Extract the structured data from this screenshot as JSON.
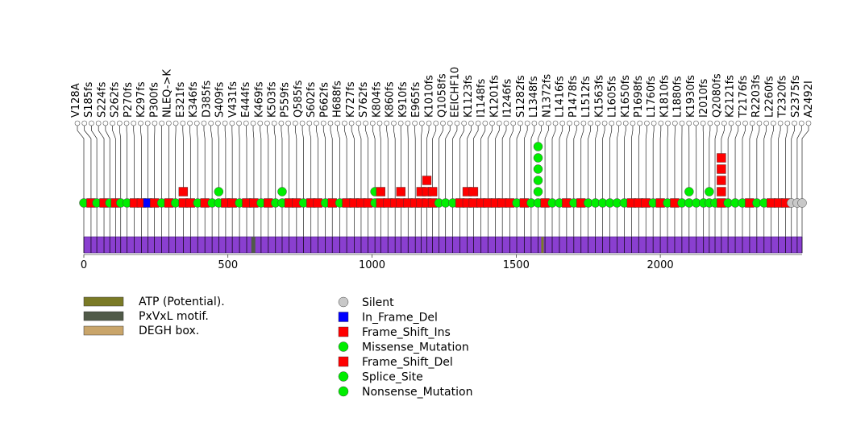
{
  "chart_data": {
    "type": "lollipop",
    "xlim": [
      0,
      2492
    ],
    "axis": {
      "ticks": [
        0,
        500,
        1000,
        1500,
        2000
      ]
    },
    "colors": {
      "protein_bar": "#8a3fd0",
      "frame_shift": "#ff0000",
      "missense": "#00ee00",
      "silent": "#c8c8c8",
      "in_frame_del": "#0000ff"
    },
    "domains": [
      {
        "name": "ATP (Potential).",
        "color": "#7a7a26",
        "start": 1587,
        "end": 1595
      },
      {
        "name": "PxVxL motif.",
        "color": "#505a48",
        "start": 581,
        "end": 595
      },
      {
        "name": "DEGH box.",
        "color": "#c9a56a",
        "start": 0,
        "end": 0
      }
    ],
    "legend": {
      "domains": [
        "ATP (Potential).",
        "PxVxL motif.",
        "DEGH box."
      ],
      "mutations": [
        {
          "label": "Silent",
          "shape": "circle",
          "color": "#c8c8c8"
        },
        {
          "label": "In_Frame_Del",
          "shape": "square",
          "color": "#0000ff"
        },
        {
          "label": "Frame_Shift_Ins",
          "shape": "square",
          "color": "#ff0000"
        },
        {
          "label": "Missense_Mutation",
          "shape": "circle",
          "color": "#00ee00"
        },
        {
          "label": "Frame_Shift_Del",
          "shape": "square",
          "color": "#ff0000"
        },
        {
          "label": "Splice_Site",
          "shape": "circle",
          "color": "#00ee00"
        },
        {
          "label": "Nonsense_Mutation",
          "shape": "circle",
          "color": "#00ee00"
        }
      ]
    },
    "mutation_labels": [
      "V128A",
      "S185fs",
      "S224fs",
      "S262fs",
      "P270fs",
      "K297fs",
      "P300fs",
      "NLEQ->K",
      "E321fs",
      "K346fs",
      "D385fs",
      "S409fs",
      "V431fs",
      "E444fs",
      "K469fs",
      "K503fs",
      "P559fs",
      "Q585fs",
      "S602fs",
      "P662fs",
      "H688fs",
      "K727fs",
      "S762fs",
      "K804fs",
      "K860fs",
      "K910fs",
      "E965fs",
      "K1010fs",
      "Q1058fs",
      "EEICHF10",
      "K1123fs",
      "I1148fs",
      "K1201fs",
      "I1246fs",
      "S1282fs",
      "L1348fs",
      "N1372fs",
      "L1416fs",
      "P1478fs",
      "L1512fs",
      "K1563fs",
      "L1605fs",
      "K1650fs",
      "P1698fs",
      "L1760fs",
      "K1810fs",
      "L1880fs",
      "K1930fs",
      "I2010fs",
      "Q2080fs",
      "K2121fs",
      "T2176fs",
      "R2203fs",
      "L2260fs",
      "T2320fs",
      "S2375fs",
      "A2492I"
    ],
    "mutations": [
      {
        "pos": 0,
        "type": "missense",
        "count": 1
      },
      {
        "pos": 25,
        "type": "frameshift",
        "count": 1
      },
      {
        "pos": 45,
        "type": "missense",
        "count": 1
      },
      {
        "pos": 70,
        "type": "frameshift",
        "count": 1
      },
      {
        "pos": 90,
        "type": "missense",
        "count": 1
      },
      {
        "pos": 110,
        "type": "frameshift",
        "count": 1
      },
      {
        "pos": 128,
        "type": "missense",
        "count": 1
      },
      {
        "pos": 150,
        "type": "missense",
        "count": 1
      },
      {
        "pos": 175,
        "type": "frameshift",
        "count": 1
      },
      {
        "pos": 200,
        "type": "frameshift",
        "count": 1
      },
      {
        "pos": 222,
        "type": "in_frame_del",
        "count": 1
      },
      {
        "pos": 245,
        "type": "frameshift",
        "count": 1
      },
      {
        "pos": 270,
        "type": "missense",
        "count": 1
      },
      {
        "pos": 295,
        "type": "frameshift",
        "count": 1
      },
      {
        "pos": 318,
        "type": "missense",
        "count": 1
      },
      {
        "pos": 345,
        "type": "frameshift",
        "count": 2
      },
      {
        "pos": 370,
        "type": "frameshift",
        "count": 1
      },
      {
        "pos": 395,
        "type": "missense",
        "count": 1
      },
      {
        "pos": 420,
        "type": "frameshift",
        "count": 1
      },
      {
        "pos": 445,
        "type": "missense",
        "count": 1
      },
      {
        "pos": 468,
        "type": "missense",
        "count": 2
      },
      {
        "pos": 492,
        "type": "frameshift",
        "count": 1
      },
      {
        "pos": 515,
        "type": "frameshift",
        "count": 1
      },
      {
        "pos": 540,
        "type": "missense",
        "count": 1
      },
      {
        "pos": 565,
        "type": "frameshift",
        "count": 1
      },
      {
        "pos": 590,
        "type": "frameshift",
        "count": 1
      },
      {
        "pos": 615,
        "type": "missense",
        "count": 1
      },
      {
        "pos": 640,
        "type": "frameshift",
        "count": 1
      },
      {
        "pos": 665,
        "type": "missense",
        "count": 1
      },
      {
        "pos": 688,
        "type": "missense",
        "count": 2
      },
      {
        "pos": 712,
        "type": "frameshift",
        "count": 1
      },
      {
        "pos": 738,
        "type": "frameshift",
        "count": 1
      },
      {
        "pos": 762,
        "type": "missense",
        "count": 1
      },
      {
        "pos": 788,
        "type": "frameshift",
        "count": 1
      },
      {
        "pos": 812,
        "type": "frameshift",
        "count": 1
      },
      {
        "pos": 838,
        "type": "missense",
        "count": 1
      },
      {
        "pos": 862,
        "type": "frameshift",
        "count": 1
      },
      {
        "pos": 888,
        "type": "missense",
        "count": 1
      },
      {
        "pos": 912,
        "type": "frameshift",
        "count": 1
      },
      {
        "pos": 938,
        "type": "frameshift",
        "count": 1
      },
      {
        "pos": 962,
        "type": "frameshift",
        "count": 1
      },
      {
        "pos": 986,
        "type": "frameshift",
        "count": 1
      },
      {
        "pos": 1010,
        "type": "missense",
        "count": 2
      },
      {
        "pos": 1030,
        "type": "frameshift",
        "count": 2
      },
      {
        "pos": 1055,
        "type": "frameshift",
        "count": 1
      },
      {
        "pos": 1080,
        "type": "frameshift",
        "count": 1
      },
      {
        "pos": 1100,
        "type": "frameshift",
        "count": 2
      },
      {
        "pos": 1125,
        "type": "frameshift",
        "count": 1
      },
      {
        "pos": 1150,
        "type": "frameshift",
        "count": 1
      },
      {
        "pos": 1170,
        "type": "frameshift",
        "count": 2
      },
      {
        "pos": 1190,
        "type": "frameshift",
        "count": 3
      },
      {
        "pos": 1210,
        "type": "frameshift",
        "count": 2
      },
      {
        "pos": 1232,
        "type": "missense",
        "count": 1
      },
      {
        "pos": 1255,
        "type": "missense",
        "count": 1
      },
      {
        "pos": 1280,
        "type": "missense",
        "count": 1
      },
      {
        "pos": 1305,
        "type": "frameshift",
        "count": 1
      },
      {
        "pos": 1330,
        "type": "frameshift",
        "count": 2
      },
      {
        "pos": 1352,
        "type": "frameshift",
        "count": 2
      },
      {
        "pos": 1378,
        "type": "frameshift",
        "count": 1
      },
      {
        "pos": 1402,
        "type": "frameshift",
        "count": 1
      },
      {
        "pos": 1428,
        "type": "frameshift",
        "count": 1
      },
      {
        "pos": 1452,
        "type": "frameshift",
        "count": 1
      },
      {
        "pos": 1478,
        "type": "frameshift",
        "count": 1
      },
      {
        "pos": 1502,
        "type": "missense",
        "count": 1
      },
      {
        "pos": 1528,
        "type": "frameshift",
        "count": 1
      },
      {
        "pos": 1552,
        "type": "missense",
        "count": 1
      },
      {
        "pos": 1576,
        "type": "missense",
        "count": 6
      },
      {
        "pos": 1600,
        "type": "frameshift",
        "count": 1
      },
      {
        "pos": 1625,
        "type": "missense",
        "count": 1
      },
      {
        "pos": 1650,
        "type": "missense",
        "count": 1
      },
      {
        "pos": 1675,
        "type": "frameshift",
        "count": 1
      },
      {
        "pos": 1700,
        "type": "missense",
        "count": 1
      },
      {
        "pos": 1725,
        "type": "frameshift",
        "count": 1
      },
      {
        "pos": 1750,
        "type": "missense",
        "count": 1
      },
      {
        "pos": 1775,
        "type": "missense",
        "count": 1
      },
      {
        "pos": 1800,
        "type": "missense",
        "count": 1
      },
      {
        "pos": 1825,
        "type": "missense",
        "count": 1
      },
      {
        "pos": 1850,
        "type": "missense",
        "count": 1
      },
      {
        "pos": 1875,
        "type": "missense",
        "count": 1
      },
      {
        "pos": 1900,
        "type": "frameshift",
        "count": 1
      },
      {
        "pos": 1925,
        "type": "frameshift",
        "count": 1
      },
      {
        "pos": 1950,
        "type": "frameshift",
        "count": 1
      },
      {
        "pos": 1975,
        "type": "missense",
        "count": 1
      },
      {
        "pos": 2000,
        "type": "frameshift",
        "count": 1
      },
      {
        "pos": 2025,
        "type": "missense",
        "count": 1
      },
      {
        "pos": 2050,
        "type": "frameshift",
        "count": 1
      },
      {
        "pos": 2075,
        "type": "missense",
        "count": 1
      },
      {
        "pos": 2100,
        "type": "missense",
        "count": 2
      },
      {
        "pos": 2125,
        "type": "missense",
        "count": 1
      },
      {
        "pos": 2150,
        "type": "missense",
        "count": 1
      },
      {
        "pos": 2170,
        "type": "missense",
        "count": 2
      },
      {
        "pos": 2190,
        "type": "missense",
        "count": 1
      },
      {
        "pos": 2212,
        "type": "frameshift",
        "count": 5
      },
      {
        "pos": 2235,
        "type": "missense",
        "count": 1
      },
      {
        "pos": 2260,
        "type": "missense",
        "count": 1
      },
      {
        "pos": 2285,
        "type": "missense",
        "count": 1
      },
      {
        "pos": 2310,
        "type": "frameshift",
        "count": 1
      },
      {
        "pos": 2335,
        "type": "missense",
        "count": 1
      },
      {
        "pos": 2360,
        "type": "missense",
        "count": 1
      },
      {
        "pos": 2385,
        "type": "frameshift",
        "count": 1
      },
      {
        "pos": 2410,
        "type": "frameshift",
        "count": 1
      },
      {
        "pos": 2435,
        "type": "frameshift",
        "count": 1
      },
      {
        "pos": 2455,
        "type": "silent",
        "count": 1
      },
      {
        "pos": 2475,
        "type": "silent",
        "count": 1
      },
      {
        "pos": 2492,
        "type": "silent",
        "count": 1
      }
    ]
  }
}
